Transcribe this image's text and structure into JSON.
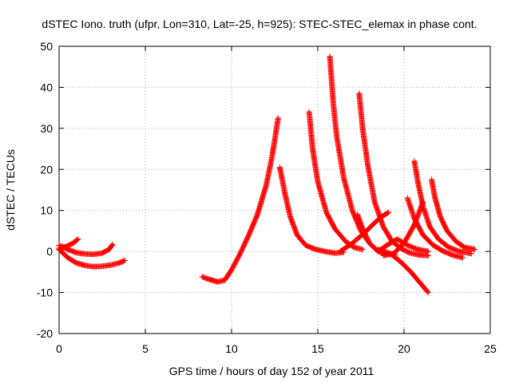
{
  "chart_data": {
    "type": "scatter",
    "title": "dSTEC Iono. truth (ufpr, Lon=310, Lat=-25, h=925): STEC-STEC_elemax in phase cont.",
    "xlabel": "GPS time / hours of day 152 of year 2011",
    "ylabel": "dSTEC  / TECUs",
    "xlim": [
      0,
      25
    ],
    "ylim": [
      -20,
      50
    ],
    "xticks": [
      0,
      5,
      10,
      15,
      20,
      25
    ],
    "yticks": [
      -20,
      -10,
      0,
      10,
      20,
      30,
      40,
      50
    ],
    "grid": true,
    "legend": "none",
    "marker": "plus",
    "color": "#ff0000",
    "series": [
      {
        "x": [
          0.0,
          0.4,
          0.8,
          1.1
        ],
        "y": [
          0.8,
          1.2,
          2.0,
          3.0
        ]
      },
      {
        "x": [
          0.0,
          0.5,
          1.0,
          1.5,
          2.0,
          2.5,
          2.9,
          3.1
        ],
        "y": [
          1.5,
          0.5,
          -0.3,
          -0.6,
          -0.7,
          -0.4,
          0.5,
          1.7
        ]
      },
      {
        "x": [
          0.0,
          0.5,
          1.0,
          1.5,
          2.0,
          2.5,
          3.0,
          3.5,
          3.8
        ],
        "y": [
          0.5,
          -1.5,
          -2.8,
          -3.4,
          -3.7,
          -3.6,
          -3.3,
          -2.8,
          -2.2
        ]
      },
      {
        "x": [
          8.3,
          8.7,
          9.2,
          9.6,
          10.0,
          10.5,
          11.0,
          11.5,
          12.0,
          12.3,
          12.5,
          12.7
        ],
        "y": [
          -6.2,
          -6.8,
          -7.4,
          -7.0,
          -4.5,
          -0.5,
          4.0,
          9.0,
          16.0,
          22.0,
          27.0,
          32.5
        ]
      },
      {
        "x": [
          12.8,
          13.1,
          13.4,
          13.8,
          14.3,
          14.8,
          15.4,
          16.0,
          16.5
        ],
        "y": [
          20.5,
          14.0,
          8.5,
          4.0,
          1.5,
          0.6,
          0.0,
          -0.4,
          -0.2
        ]
      },
      {
        "x": [
          14.5,
          14.7,
          15.0,
          15.5,
          16.0,
          16.6,
          17.1,
          17.6
        ],
        "y": [
          34.0,
          25.0,
          17.0,
          9.5,
          5.5,
          2.5,
          1.0,
          0.5
        ]
      },
      {
        "x": [
          15.7,
          15.9,
          16.1,
          16.5,
          17.0,
          17.5,
          18.0,
          18.5,
          19.0,
          19.5
        ],
        "y": [
          47.5,
          36.0,
          28.0,
          18.0,
          10.0,
          5.0,
          2.0,
          0.0,
          -0.6,
          -0.8
        ]
      },
      {
        "x": [
          17.4,
          17.6,
          17.9,
          18.3,
          18.8,
          19.3,
          19.8,
          20.3,
          20.8,
          21.4
        ],
        "y": [
          38.5,
          30.0,
          21.0,
          12.0,
          6.0,
          2.5,
          0.8,
          -0.3,
          -0.8,
          -1.0
        ]
      },
      {
        "x": [
          16.3,
          17.0,
          17.7,
          18.3,
          18.7,
          19.1
        ],
        "y": [
          0.0,
          2.0,
          4.5,
          7.0,
          8.5,
          9.5
        ]
      },
      {
        "x": [
          17.3,
          17.6,
          18.0,
          18.5,
          19.0,
          19.6,
          20.2,
          20.8,
          21.4
        ],
        "y": [
          9.0,
          5.5,
          2.0,
          0.0,
          1.5,
          3.0,
          1.5,
          0.5,
          0.0
        ]
      },
      {
        "x": [
          18.8,
          19.4,
          20.0,
          20.6,
          21.1
        ],
        "y": [
          -1.0,
          -0.5,
          2.0,
          6.5,
          12.0
        ]
      },
      {
        "x": [
          18.5,
          19.2,
          19.8,
          20.4,
          21.0,
          21.4
        ],
        "y": [
          0.5,
          -0.5,
          -2.5,
          -5.0,
          -8.0,
          -10.0
        ]
      },
      {
        "x": [
          20.2,
          20.6,
          21.1,
          21.7,
          22.3,
          22.9,
          23.4
        ],
        "y": [
          13.0,
          8.0,
          4.0,
          1.5,
          0.0,
          -1.0,
          -1.5
        ]
      },
      {
        "x": [
          20.6,
          20.8,
          21.1,
          21.5,
          22.0,
          22.6,
          23.2,
          23.9
        ],
        "y": [
          22.0,
          17.0,
          11.0,
          6.0,
          3.0,
          1.0,
          0.0,
          -0.5
        ]
      },
      {
        "x": [
          21.6,
          21.8,
          22.1,
          22.5,
          23.0,
          23.5,
          24.1
        ],
        "y": [
          17.5,
          13.0,
          8.5,
          5.0,
          2.5,
          1.0,
          0.5
        ]
      }
    ]
  }
}
